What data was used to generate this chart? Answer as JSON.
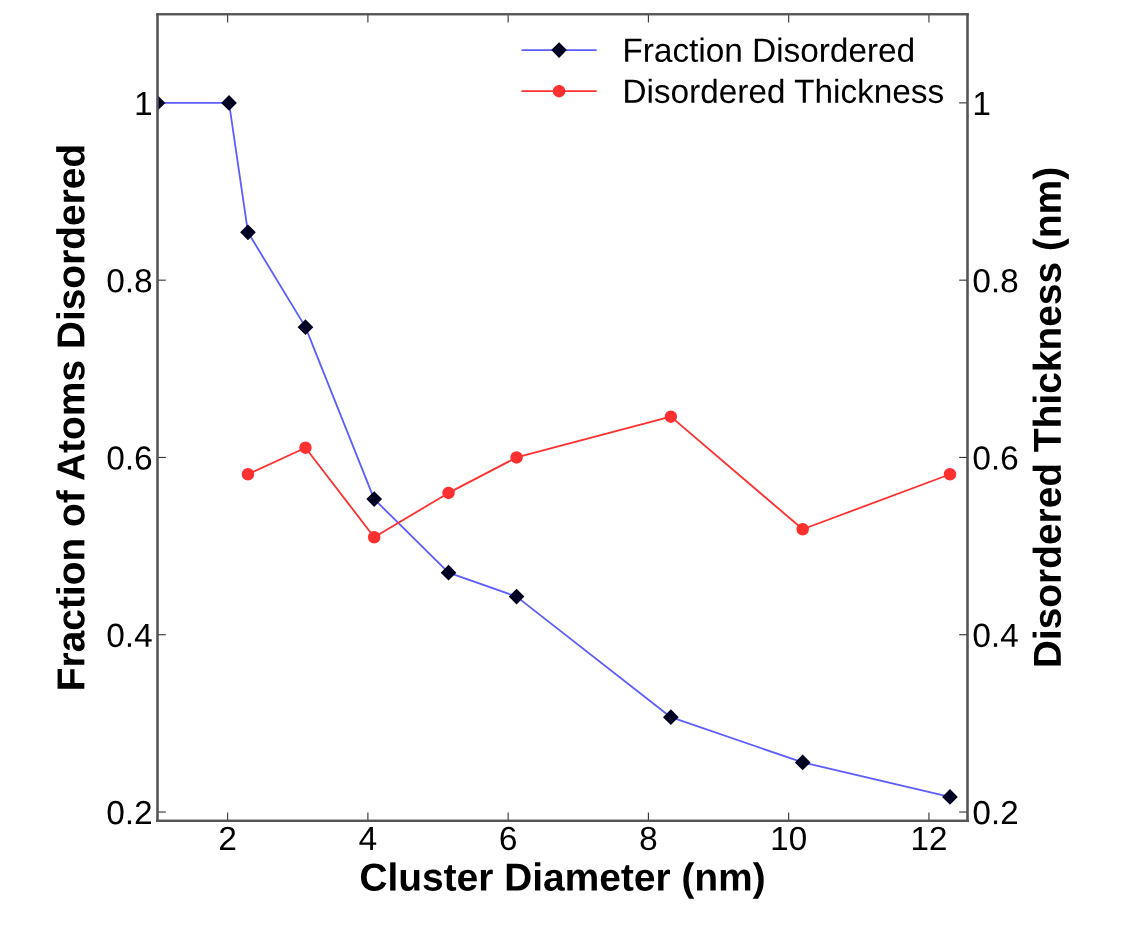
{
  "chart_data": {
    "type": "line",
    "xlabel": "Cluster Diameter (nm)",
    "ylabel": "Fraction of Atoms Disordered",
    "y2label": "Disordered Thickness (nm)",
    "xlim": [
      1,
      12.55
    ],
    "xticks": [
      2,
      4,
      6,
      8,
      10,
      12
    ],
    "ylim": [
      0.19,
      1.1
    ],
    "yticks": [
      0.2,
      0.4,
      0.6,
      0.8,
      1
    ],
    "y2lim": [
      0.19,
      1.1
    ],
    "y2ticks": [
      0.2,
      0.4,
      0.6,
      0.8,
      1
    ],
    "legend": "top right",
    "grid": false,
    "line_style": "solid",
    "series": [
      {
        "name": "Fraction Disordered",
        "color": "#5c5cff",
        "marker": "diamond",
        "x": [
          1,
          2.02,
          2.29,
          3.11,
          4.09,
          5.15,
          6.12,
          8.32,
          10.2,
          12.3
        ],
        "values": [
          1,
          1,
          0.854,
          0.747,
          0.553,
          0.47,
          0.443,
          0.307,
          0.256,
          0.217
        ]
      },
      {
        "name": "Disordered Thickness",
        "color": "#ff3030",
        "marker": "circle",
        "axis": "y2",
        "x": [
          2.29,
          3.11,
          4.09,
          5.15,
          6.12,
          8.32,
          10.2,
          12.3
        ],
        "values": [
          0.581,
          0.611,
          0.51,
          0.56,
          0.6,
          0.646,
          0.519,
          0.581
        ]
      }
    ]
  }
}
